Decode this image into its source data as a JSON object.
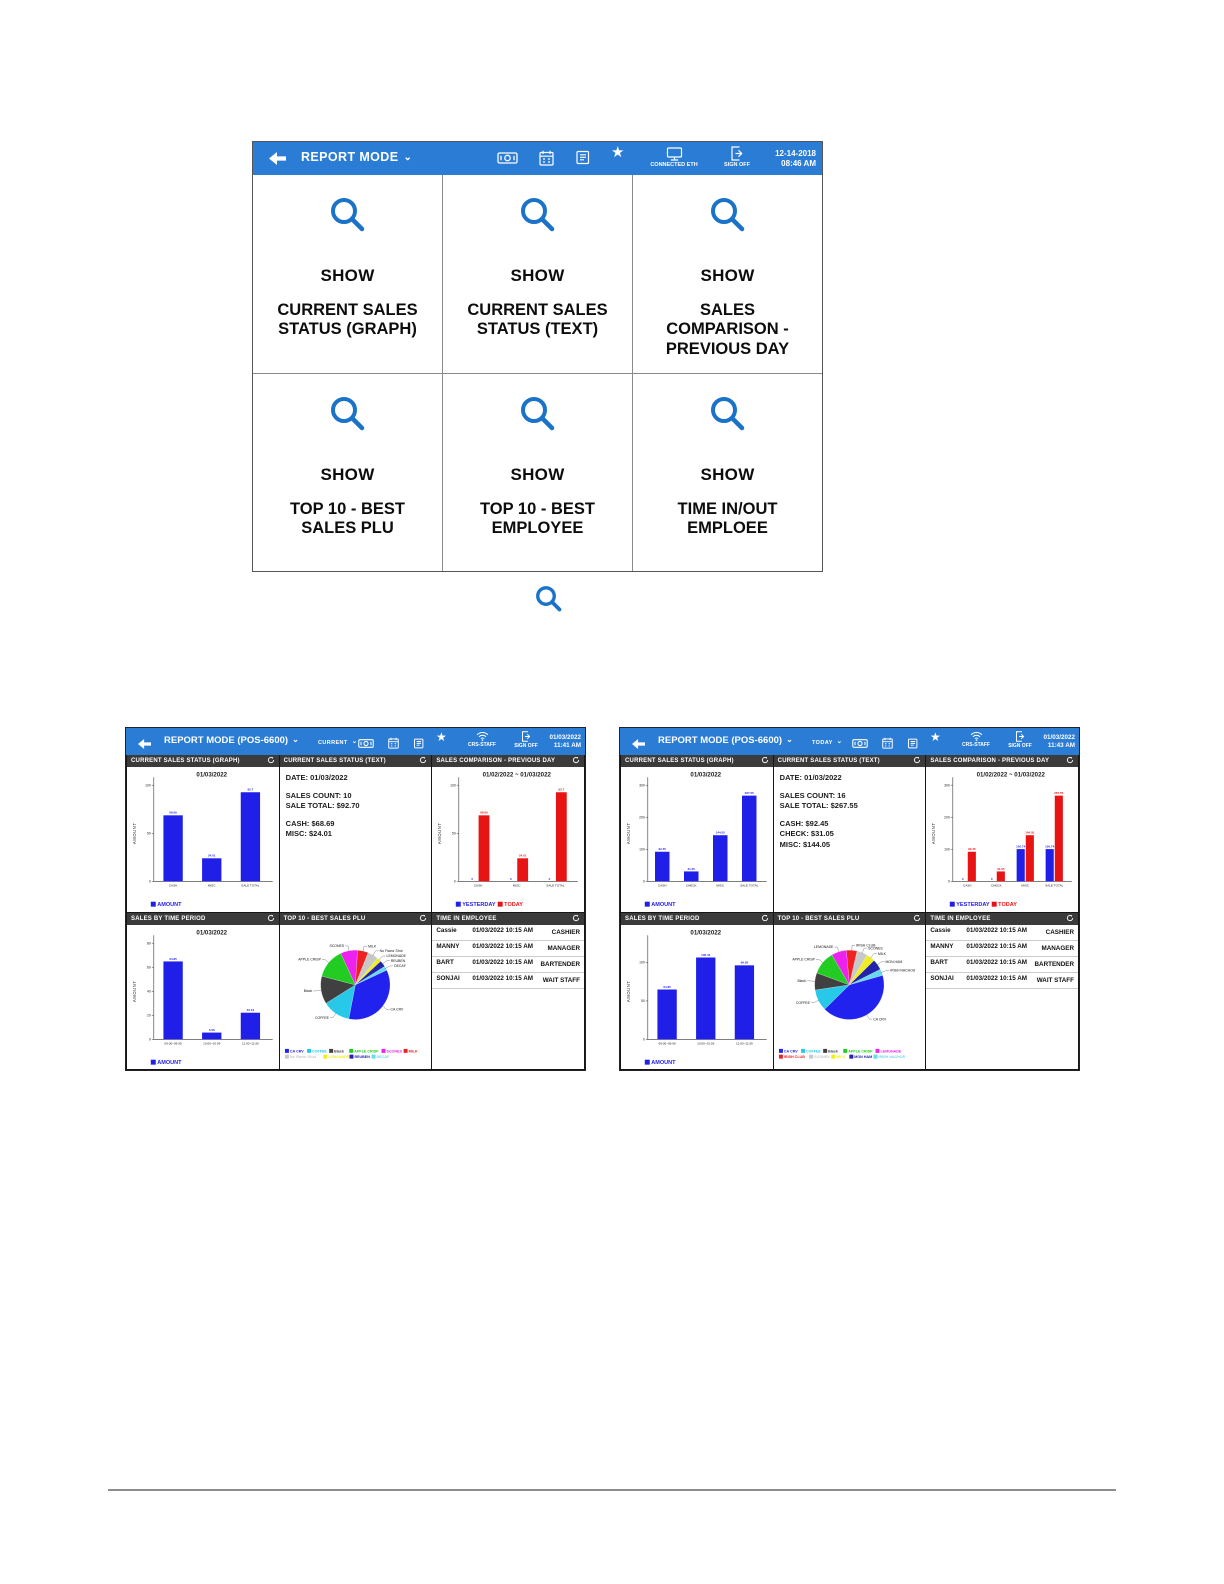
{
  "icons": {
    "star": "★",
    "chevron": "⌄"
  },
  "menu": {
    "header": {
      "title": "REPORT MODE",
      "connected_label": "CONNECTED ETH",
      "sign_off_label": "SIGN OFF",
      "date_line1": "12-14-2018",
      "date_line2": "08:46 AM"
    },
    "tiles": [
      {
        "action": "SHOW",
        "title": "CURRENT SALES STATUS (GRAPH)"
      },
      {
        "action": "SHOW",
        "title": "CURRENT SALES STATUS (TEXT)"
      },
      {
        "action": "SHOW",
        "title": "SALES COMPARISON - PREVIOUS DAY"
      },
      {
        "action": "SHOW",
        "title": "TOP 10 - BEST SALES PLU"
      },
      {
        "action": "SHOW",
        "title": "TOP 10 - BEST EMPLOYEE"
      },
      {
        "action": "SHOW",
        "title": "TIME IN/OUT EMPLOEE"
      }
    ]
  },
  "dashboards": [
    {
      "header": {
        "title": "REPORT MODE (POS-6600)",
        "range": "CURRENT",
        "network": "CRS-STAFF",
        "sign_off": "SIGN OFF",
        "date_line1": "01/03/2022",
        "date_line2": "11:41 AM"
      },
      "panels": {
        "sales_graph": {
          "title": "CURRENT SALES STATUS (GRAPH)",
          "chart_data": {
            "type": "bar",
            "title": "01/03/2022",
            "categories": [
              "CASH",
              "MISC",
              "SALE TOTAL"
            ],
            "series": [
              {
                "name": "AMOUNT",
                "color": "#1f1fe8",
                "values": [
                  68.69,
                  24.01,
                  92.7
                ]
              }
            ],
            "ylabel": "AMOUNT",
            "ylim": [
              0,
              100
            ],
            "yticks": [
              0,
              50,
              100
            ],
            "legend": [
              {
                "label": "AMOUNT",
                "color": "#1f1fe8"
              }
            ]
          }
        },
        "sales_text": {
          "title": "CURRENT SALES STATUS (TEXT)",
          "lines": [
            "DATE: 01/03/2022",
            "",
            "SALES COUNT: 10",
            "SALE TOTAL: $92.70",
            "",
            "CASH: $68.69",
            "MISC: $24.01"
          ]
        },
        "comparison": {
          "title": "SALES COMPARISON - PREVIOUS DAY",
          "chart_data": {
            "type": "bar",
            "title": "01/02/2022 ~ 01/03/2022",
            "categories": [
              "CASH",
              "MISC",
              "SALE TOTAL"
            ],
            "series": [
              {
                "name": "YESTERDAY",
                "color": "#1f1fe8",
                "values": [
                  0,
                  0,
                  0
                ]
              },
              {
                "name": "TODAY",
                "color": "#e81414",
                "values": [
                  68.69,
                  24.01,
                  92.7
                ]
              }
            ],
            "ylabel": "AMOUNT",
            "ylim": [
              0,
              100
            ],
            "yticks": [
              0,
              50,
              100
            ],
            "legend": [
              {
                "label": "YESTERDAY",
                "color": "#1f1fe8"
              },
              {
                "label": "TODAY",
                "color": "#e81414"
              }
            ]
          }
        },
        "time_period": {
          "title": "SALES BY TIME PERIOD",
          "chart_data": {
            "type": "bar",
            "title": "01/03/2022",
            "categories": [
              "09:00~09:59",
              "10:00~10:59",
              "11:00~11:59"
            ],
            "series": [
              {
                "name": "AMOUNT",
                "color": "#1f1fe8",
                "values": [
                  64.85,
                  5.66,
                  22.19
                ]
              }
            ],
            "ylabel": "AMOUNT",
            "ylim": [
              0,
              80
            ],
            "yticks": [
              0,
              20,
              40,
              60,
              80
            ],
            "legend": [
              {
                "label": "AMOUNT",
                "color": "#1f1fe8"
              }
            ]
          }
        },
        "top10_plu": {
          "title": "TOP 10 - BEST SALES PLU",
          "chart_data": {
            "type": "pie",
            "start_angle": -115,
            "slices": [
              {
                "label": "SCONES",
                "value": 8,
                "color": "#ee22ee"
              },
              {
                "label": "MILK",
                "value": 5,
                "color": "#ee2222"
              },
              {
                "label": "No Flavor Shot",
                "value": 5,
                "color": "#c8c8c8"
              },
              {
                "label": "LEMONADE",
                "value": 2,
                "color": "#eeee22"
              },
              {
                "label": "REUBEN",
                "value": 3,
                "color": "#2222aa"
              },
              {
                "label": "DECAF",
                "value": 2,
                "color": "#66d9f0"
              },
              {
                "label": "CA CRV",
                "value": 35,
                "color": "#2222ee"
              },
              {
                "label": "COFFEE",
                "value": 13,
                "color": "#28c8e8"
              },
              {
                "label": "Black",
                "value": 13,
                "color": "#404040"
              },
              {
                "label": "APPLE CRISP",
                "value": 14,
                "color": "#22cc22"
              }
            ],
            "legend": [
              {
                "label": "CA CRV",
                "color": "#2222ee"
              },
              {
                "label": "COFFEE",
                "color": "#28c8e8"
              },
              {
                "label": "Black",
                "color": "#404040"
              },
              {
                "label": "APPLE CRISP",
                "color": "#22cc22"
              },
              {
                "label": "SCONES",
                "color": "#ee22ee"
              },
              {
                "label": "MILK",
                "color": "#ee2222"
              },
              {
                "label": "No Flavor Shot",
                "color": "#c8c8c8"
              },
              {
                "label": "LEMONADE",
                "color": "#eeee22"
              },
              {
                "label": "REUBEN",
                "color": "#2222aa"
              },
              {
                "label": "DECAF",
                "color": "#66d9f0"
              }
            ]
          }
        },
        "time_in": {
          "title": "TIME IN EMPLOYEE",
          "rows": [
            {
              "name": "Cassie",
              "time": "01/03/2022 10:15 AM",
              "role": "CASHIER"
            },
            {
              "name": "MANNY",
              "time": "01/03/2022 10:15 AM",
              "role": "MANAGER"
            },
            {
              "name": "BART",
              "time": "01/03/2022 10:15 AM",
              "role": "BARTENDER"
            },
            {
              "name": "SONJAI",
              "time": "01/03/2022 10:15 AM",
              "role": "WAIT STAFF"
            }
          ]
        }
      }
    },
    {
      "header": {
        "title": "REPORT MODE (POS-6600)",
        "range": "TODAY",
        "network": "CRS-STAFF",
        "sign_off": "SIGN OFF",
        "date_line1": "01/03/2022",
        "date_line2": "11:43 AM"
      },
      "panels": {
        "sales_graph": {
          "title": "CURRENT SALES STATUS (GRAPH)",
          "chart_data": {
            "type": "bar",
            "title": "01/03/2022",
            "categories": [
              "CASH",
              "CHECK",
              "MISC",
              "SALE TOTAL"
            ],
            "series": [
              {
                "name": "AMOUNT",
                "color": "#1f1fe8",
                "values": [
                  92.45,
                  31.05,
                  144.05,
                  267.55
                ]
              }
            ],
            "ylabel": "AMOUNT",
            "ylim": [
              0,
              300
            ],
            "yticks": [
              0,
              100,
              200,
              300
            ],
            "legend": [
              {
                "label": "AMOUNT",
                "color": "#1f1fe8"
              }
            ]
          }
        },
        "sales_text": {
          "title": "CURRENT SALES STATUS (TEXT)",
          "lines": [
            "DATE: 01/03/2022",
            "",
            "SALES COUNT: 16",
            "SALE TOTAL: $267.55",
            "",
            "CASH: $92.45",
            "CHECK: $31.05",
            "MISC: $144.05"
          ]
        },
        "comparison": {
          "title": "SALES COMPARISON - PREVIOUS DAY",
          "chart_data": {
            "type": "bar",
            "title": "01/02/2022 ~ 01/03/2022",
            "categories": [
              "CASH",
              "CHECK",
              "MISC",
              "SALE TOTAL"
            ],
            "series": [
              {
                "name": "YESTERDAY",
                "color": "#1f1fe8",
                "values": [
                  0,
                  0,
                  100.74,
                  100.74
                ]
              },
              {
                "name": "TODAY",
                "color": "#e81414",
                "values": [
                  92.45,
                  31.05,
                  144.05,
                  267.55
                ]
              }
            ],
            "ylabel": "AMOUNT",
            "ylim": [
              0,
              300
            ],
            "yticks": [
              0,
              100,
              200,
              300
            ],
            "legend": [
              {
                "label": "YESTERDAY",
                "color": "#1f1fe8"
              },
              {
                "label": "TODAY",
                "color": "#e81414"
              }
            ]
          }
        },
        "time_period": {
          "title": "SALES BY TIME PERIOD",
          "chart_data": {
            "type": "bar",
            "title": "01/03/2022",
            "categories": [
              "09:00~09:59",
              "10:00~10:59",
              "11:00~11:59"
            ],
            "series": [
              {
                "name": "AMOUNT",
                "color": "#1f1fe8",
                "values": [
                  64.85,
                  106.44,
                  96.26
                ]
              }
            ],
            "ylabel": "AMOUNT",
            "ylim": [
              0,
              125
            ],
            "yticks": [
              0,
              50,
              100
            ],
            "legend": [
              {
                "label": "AMOUNT",
                "color": "#1f1fe8"
              }
            ]
          }
        },
        "top10_plu": {
          "title": "TOP 10 - BEST SALES PLU",
          "chart_data": {
            "type": "pie",
            "start_angle": -95,
            "slices": [
              {
                "label": "IRISH CLUB",
                "value": 5,
                "color": "#ee2222"
              },
              {
                "label": "SCONES",
                "value": 5,
                "color": "#c8c8c8"
              },
              {
                "label": "MILK",
                "value": 4,
                "color": "#eeee22"
              },
              {
                "label": "MON HAM",
                "value": 5,
                "color": "#2222aa"
              },
              {
                "label": "IRISH NACHOS",
                "value": 3,
                "color": "#66d9f0"
              },
              {
                "label": "CA CRV",
                "value": 42,
                "color": "#2222ee"
              },
              {
                "label": "COFFEE",
                "value": 10,
                "color": "#28c8e8"
              },
              {
                "label": "Black",
                "value": 8,
                "color": "#404040"
              },
              {
                "label": "APPLE CRISP",
                "value": 11,
                "color": "#22cc22"
              },
              {
                "label": "LEMONADE",
                "value": 7,
                "color": "#ee22ee"
              }
            ],
            "legend": [
              {
                "label": "CA CRV",
                "color": "#2222ee"
              },
              {
                "label": "COFFEE",
                "color": "#28c8e8"
              },
              {
                "label": "Black",
                "color": "#404040"
              },
              {
                "label": "APPLE CRISP",
                "color": "#22cc22"
              },
              {
                "label": "LEMONADE",
                "color": "#ee22ee"
              },
              {
                "label": "IRISH CLUB",
                "color": "#ee2222"
              },
              {
                "label": "SCONES",
                "color": "#c8c8c8"
              },
              {
                "label": "MILK",
                "color": "#eeee22"
              },
              {
                "label": "MON HAM",
                "color": "#2222aa"
              },
              {
                "label": "IRISH NACHOS",
                "color": "#66d9f0"
              }
            ]
          }
        },
        "time_in": {
          "title": "TIME IN EMPLOYEE",
          "rows": [
            {
              "name": "Cassie",
              "time": "01/03/2022 10:15 AM",
              "role": "CASHIER"
            },
            {
              "name": "MANNY",
              "time": "01/03/2022 10:15 AM",
              "role": "MANAGER"
            },
            {
              "name": "BART",
              "time": "01/03/2022 10:15 AM",
              "role": "BARTENDER"
            },
            {
              "name": "SONJAI",
              "time": "01/03/2022 10:15 AM",
              "role": "WAIT STAFF"
            }
          ]
        }
      }
    }
  ]
}
